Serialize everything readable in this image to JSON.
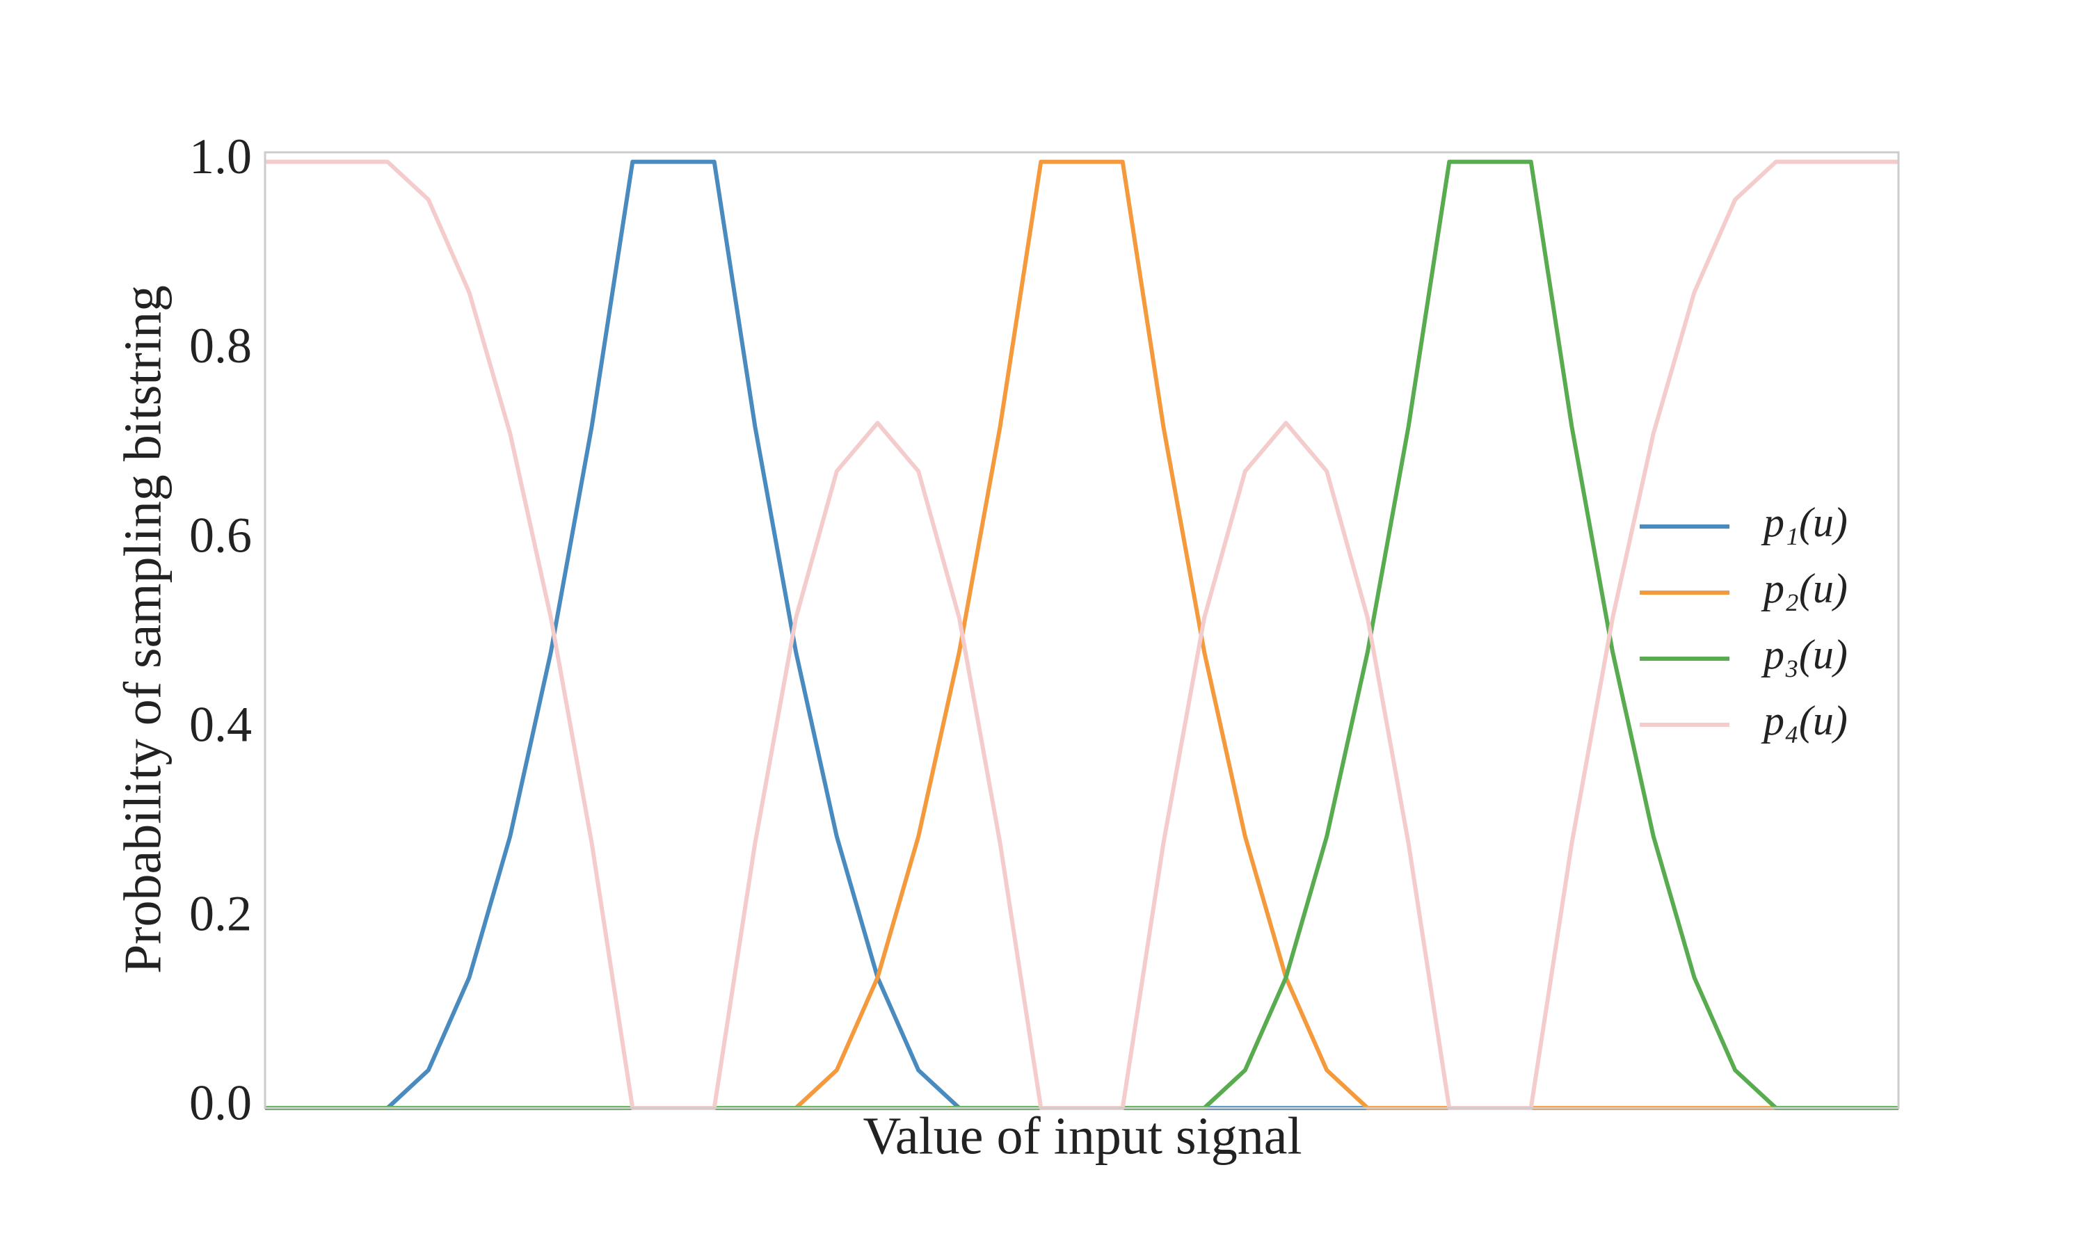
{
  "chart_data": {
    "type": "line",
    "xlabel": "Value of input signal",
    "ylabel": "Probability of sampling bitstring",
    "x": [
      0,
      2.5,
      5,
      7.5,
      10,
      12.5,
      15,
      17.5,
      20,
      22.5,
      25,
      27.5,
      30,
      32.5,
      35,
      37.5,
      40,
      42.5,
      45,
      47.5,
      50,
      52.5,
      55,
      57.5,
      60,
      62.5,
      65,
      67.5,
      70,
      72.5,
      75,
      77.5,
      80,
      82.5,
      85,
      87.5,
      90,
      92.5,
      95,
      97.5,
      100
    ],
    "xlim": [
      0,
      100
    ],
    "ylim": [
      0,
      1.01
    ],
    "yticks": [
      {
        "value": 0,
        "label": "0.0"
      },
      0.2,
      0.4,
      0.6,
      0.8,
      {
        "value": 1,
        "label": "1.0"
      }
    ],
    "grid": false,
    "legend": "right",
    "series": [
      {
        "name": "p₁(u)",
        "color": "#4a8bbf",
        "values": [
          0,
          0,
          0,
          0,
          0.04,
          0.138,
          0.287,
          0.482,
          0.72,
          1,
          1,
          1,
          0.72,
          0.482,
          0.287,
          0.138,
          0.04,
          0,
          0,
          0,
          0,
          0,
          0,
          0,
          0,
          0,
          0,
          0,
          0,
          0,
          0,
          0,
          0,
          0,
          0,
          0,
          0,
          0,
          0,
          0,
          0
        ]
      },
      {
        "name": "p₂(u)",
        "color": "#f59a3c",
        "values": [
          0,
          0,
          0,
          0,
          0,
          0,
          0,
          0,
          0,
          0,
          0,
          0,
          0,
          0,
          0.04,
          0.138,
          0.287,
          0.482,
          0.72,
          1,
          1,
          1,
          0.72,
          0.482,
          0.287,
          0.138,
          0.04,
          0,
          0,
          0,
          0,
          0,
          0,
          0,
          0,
          0,
          0,
          0,
          0,
          0,
          0
        ]
      },
      {
        "name": "p₃(u)",
        "color": "#59ab4f",
        "values": [
          0,
          0,
          0,
          0,
          0,
          0,
          0,
          0,
          0,
          0,
          0,
          0,
          0,
          0,
          0,
          0,
          0,
          0,
          0,
          0,
          0,
          0,
          0,
          0,
          0.04,
          0.138,
          0.287,
          0.482,
          0.72,
          1,
          1,
          1,
          0.72,
          0.482,
          0.287,
          0.138,
          0.04,
          0,
          0,
          0,
          0
        ]
      },
      {
        "name": "p₄(u)",
        "color": "#f4cccc",
        "values": [
          1,
          1,
          1,
          1,
          0.96,
          0.862,
          0.713,
          0.518,
          0.28,
          0,
          0,
          0,
          0.28,
          0.518,
          0.673,
          0.724,
          0.673,
          0.518,
          0.28,
          0,
          0,
          0,
          0.28,
          0.518,
          0.673,
          0.724,
          0.673,
          0.518,
          0.28,
          0,
          0,
          0,
          0.28,
          0.518,
          0.713,
          0.862,
          0.96,
          1,
          1,
          1,
          1
        ]
      }
    ]
  }
}
